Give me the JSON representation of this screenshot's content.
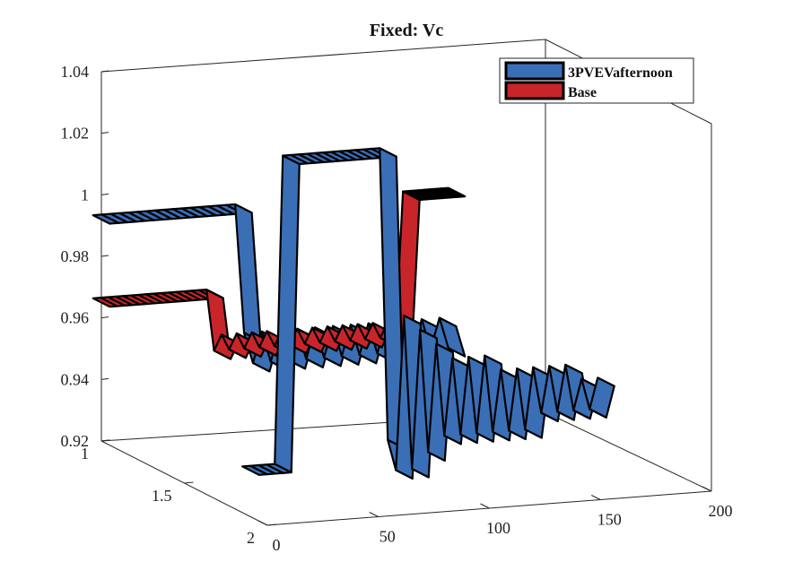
{
  "chart_data": {
    "type": "ribbon3d",
    "title": "Fixed: Vc",
    "xlabel": "",
    "ylabel": "",
    "zlabel": "",
    "x_axis": {
      "range": [
        0,
        200
      ],
      "ticks": [
        0,
        50,
        100,
        150,
        200
      ]
    },
    "y_axis": {
      "range": [
        1,
        2
      ],
      "ticks": [
        1,
        1.5,
        2
      ]
    },
    "z_axis": {
      "range": [
        0.92,
        1.04
      ],
      "ticks": [
        0.92,
        0.94,
        0.96,
        0.98,
        1,
        1.02,
        1.04
      ]
    },
    "legend": {
      "placement": "top-right",
      "entries": [
        "3PVEVafternoon",
        "Base"
      ]
    },
    "series": [
      {
        "name": "3PVEVafternoon",
        "color": "#3a6fb6",
        "y_position": 1.9,
        "values": [
          0.935,
          0.935,
          0.935,
          0.935,
          0.935,
          1.035,
          1.035,
          1.035,
          1.035,
          1.035,
          1.035,
          1.035,
          1.035,
          1.035,
          1.035,
          1.035,
          1.035,
          1.035,
          0.94,
          0.93,
          0.98,
          0.93,
          0.975,
          0.935,
          0.97,
          0.94,
          0.965,
          0.94,
          0.965,
          0.94,
          0.965,
          0.94,
          0.96,
          0.94,
          0.96,
          0.94,
          0.96,
          0.945,
          0.96,
          0.945,
          0.96,
          0.945,
          0.955,
          0.945,
          0.955
        ]
      },
      {
        "name": "3PVEVafternoon",
        "color": "#3a6fb6",
        "y_position": 1.0,
        "values": [
          0.992,
          0.992,
          0.992,
          0.992,
          0.992,
          0.992,
          0.992,
          0.992,
          0.992,
          0.992,
          0.992,
          0.992,
          0.992,
          0.992,
          0.992,
          0.992,
          0.992,
          0.95,
          0.94,
          0.95,
          0.94,
          0.95,
          0.94,
          0.95,
          0.94,
          0.95,
          0.94,
          0.95,
          0.94,
          0.95,
          0.94,
          0.95,
          0.94,
          0.95,
          0.94,
          0.95,
          0.94,
          0.95,
          0.94,
          0.95,
          0.94
        ]
      },
      {
        "name": "Base",
        "color": "#c8252b",
        "y_position": 1.0,
        "values": [
          0.965,
          0.965,
          0.965,
          0.965,
          0.965,
          0.965,
          0.965,
          0.965,
          0.965,
          0.965,
          0.965,
          0.965,
          0.965,
          0.965,
          0.965,
          0.965,
          0.945,
          0.95,
          0.945,
          0.95,
          0.945,
          0.95,
          0.945,
          0.95,
          0.945,
          0.95,
          0.945,
          0.95,
          0.945,
          0.95,
          0.945,
          0.95,
          0.945,
          0.95,
          0.945,
          0.95,
          0.945,
          0.95,
          0.945,
          0.95,
          0.945,
          0.992,
          0.992,
          0.992,
          0.992,
          0.992,
          0.992,
          0.992
        ]
      }
    ]
  }
}
